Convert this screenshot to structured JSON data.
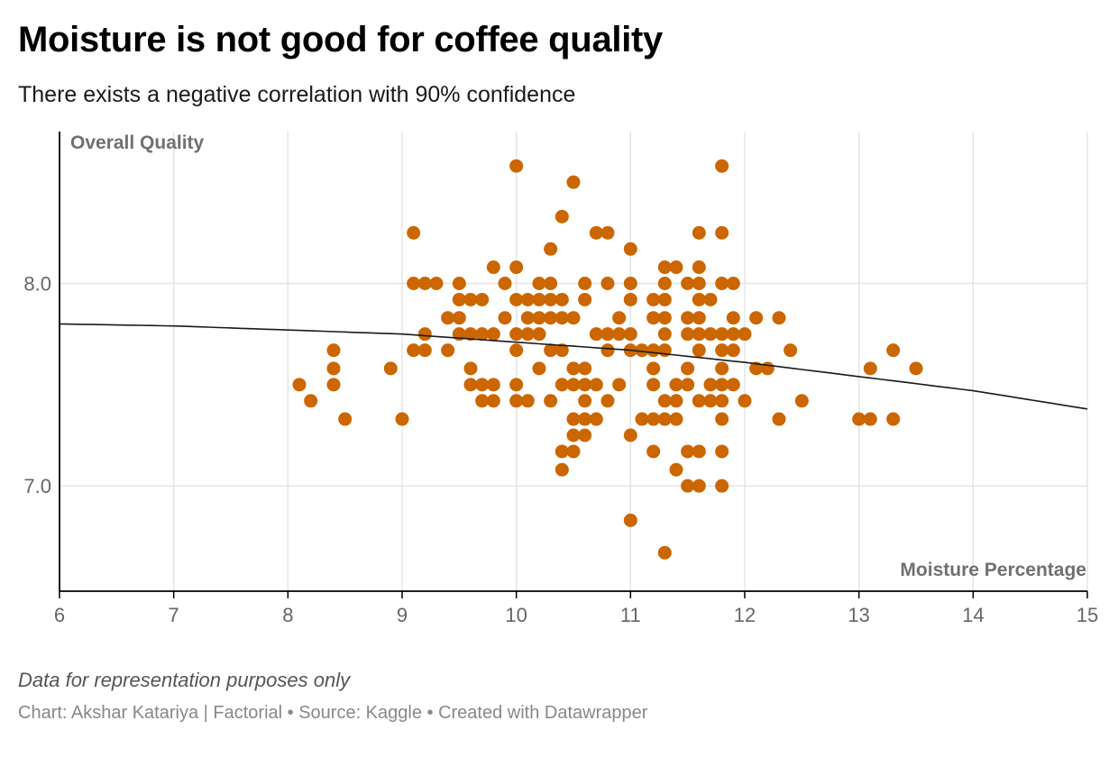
{
  "title": "Moisture is not good for coffee quality",
  "subtitle": "There exists a negative correlation with 90% confidence",
  "footer": {
    "note": "Data for representation purposes only",
    "credit": "Chart: Akshar Katariya | Factorial • Source: Kaggle • Created with Datawrapper"
  },
  "colors": {
    "point": "#cc6600",
    "trendline": "#1a1a1a",
    "grid": "#e3e3e3",
    "axis": "#000000",
    "axis_label": "#707070",
    "tick_label": "#666666"
  },
  "chart_data": {
    "type": "scatter",
    "xlabel": "Moisture Percentage",
    "ylabel": "Overall Quality",
    "xlim": [
      6,
      15
    ],
    "ylim": [
      6.48,
      8.75
    ],
    "x_ticks": [
      "6",
      "7",
      "8",
      "9",
      "10",
      "11",
      "12",
      "13",
      "14",
      "15"
    ],
    "y_ticks": [
      "7.0",
      "8.0"
    ],
    "grid": true,
    "trendline": {
      "x": [
        6,
        7,
        8,
        9,
        10,
        11,
        12,
        13,
        14,
        15
      ],
      "y": [
        7.8,
        7.79,
        7.77,
        7.75,
        7.71,
        7.67,
        7.61,
        7.54,
        7.47,
        7.38
      ]
    },
    "points": [
      [
        8.1,
        7.5
      ],
      [
        8.2,
        7.42
      ],
      [
        8.4,
        7.67
      ],
      [
        8.4,
        7.58
      ],
      [
        8.4,
        7.5
      ],
      [
        8.5,
        7.33
      ],
      [
        8.9,
        7.58
      ],
      [
        9.0,
        7.33
      ],
      [
        9.1,
        8.25
      ],
      [
        9.1,
        8.0
      ],
      [
        9.1,
        7.67
      ],
      [
        9.2,
        8.0
      ],
      [
        9.2,
        7.75
      ],
      [
        9.2,
        7.67
      ],
      [
        9.3,
        8.0
      ],
      [
        9.4,
        7.83
      ],
      [
        9.4,
        7.67
      ],
      [
        9.5,
        8.0
      ],
      [
        9.5,
        7.92
      ],
      [
        9.5,
        7.83
      ],
      [
        9.5,
        7.75
      ],
      [
        9.6,
        7.92
      ],
      [
        9.6,
        7.75
      ],
      [
        9.6,
        7.58
      ],
      [
        9.6,
        7.5
      ],
      [
        9.7,
        7.92
      ],
      [
        9.7,
        7.75
      ],
      [
        9.7,
        7.5
      ],
      [
        9.7,
        7.42
      ],
      [
        9.8,
        8.08
      ],
      [
        9.8,
        7.75
      ],
      [
        9.8,
        7.5
      ],
      [
        9.8,
        7.42
      ],
      [
        9.9,
        7.83
      ],
      [
        9.9,
        8.0
      ],
      [
        10.0,
        8.58
      ],
      [
        10.0,
        8.08
      ],
      [
        10.0,
        7.92
      ],
      [
        10.0,
        7.75
      ],
      [
        10.0,
        7.67
      ],
      [
        10.0,
        7.5
      ],
      [
        10.0,
        7.42
      ],
      [
        10.1,
        7.92
      ],
      [
        10.1,
        7.83
      ],
      [
        10.1,
        7.75
      ],
      [
        10.1,
        7.42
      ],
      [
        10.2,
        8.0
      ],
      [
        10.2,
        7.92
      ],
      [
        10.2,
        7.83
      ],
      [
        10.2,
        7.75
      ],
      [
        10.2,
        7.58
      ],
      [
        10.3,
        8.17
      ],
      [
        10.3,
        8.0
      ],
      [
        10.3,
        7.92
      ],
      [
        10.3,
        7.83
      ],
      [
        10.3,
        7.67
      ],
      [
        10.3,
        7.42
      ],
      [
        10.4,
        8.33
      ],
      [
        10.4,
        7.92
      ],
      [
        10.4,
        7.83
      ],
      [
        10.4,
        7.67
      ],
      [
        10.4,
        7.5
      ],
      [
        10.4,
        7.17
      ],
      [
        10.4,
        7.08
      ],
      [
        10.5,
        8.5
      ],
      [
        10.5,
        7.83
      ],
      [
        10.5,
        7.58
      ],
      [
        10.5,
        7.5
      ],
      [
        10.5,
        7.33
      ],
      [
        10.5,
        7.25
      ],
      [
        10.5,
        7.17
      ],
      [
        10.6,
        8.0
      ],
      [
        10.6,
        7.92
      ],
      [
        10.6,
        7.58
      ],
      [
        10.6,
        7.5
      ],
      [
        10.6,
        7.42
      ],
      [
        10.6,
        7.33
      ],
      [
        10.6,
        7.25
      ],
      [
        10.7,
        8.25
      ],
      [
        10.7,
        7.75
      ],
      [
        10.7,
        7.5
      ],
      [
        10.7,
        7.33
      ],
      [
        10.8,
        8.25
      ],
      [
        10.8,
        8.0
      ],
      [
        10.8,
        7.75
      ],
      [
        10.8,
        7.67
      ],
      [
        10.8,
        7.42
      ],
      [
        10.9,
        7.83
      ],
      [
        10.9,
        7.75
      ],
      [
        10.9,
        7.5
      ],
      [
        11.0,
        8.17
      ],
      [
        11.0,
        8.0
      ],
      [
        11.0,
        7.92
      ],
      [
        11.0,
        7.75
      ],
      [
        11.0,
        7.67
      ],
      [
        11.0,
        7.25
      ],
      [
        11.0,
        6.83
      ],
      [
        11.1,
        7.67
      ],
      [
        11.1,
        7.33
      ],
      [
        11.2,
        7.92
      ],
      [
        11.2,
        7.83
      ],
      [
        11.2,
        7.67
      ],
      [
        11.2,
        7.58
      ],
      [
        11.2,
        7.5
      ],
      [
        11.2,
        7.33
      ],
      [
        11.2,
        7.17
      ],
      [
        11.3,
        8.08
      ],
      [
        11.3,
        8.0
      ],
      [
        11.3,
        7.92
      ],
      [
        11.3,
        7.83
      ],
      [
        11.3,
        7.75
      ],
      [
        11.3,
        7.67
      ],
      [
        11.3,
        7.42
      ],
      [
        11.3,
        7.33
      ],
      [
        11.3,
        6.67
      ],
      [
        11.4,
        8.08
      ],
      [
        11.4,
        7.5
      ],
      [
        11.4,
        7.42
      ],
      [
        11.4,
        7.33
      ],
      [
        11.4,
        7.08
      ],
      [
        11.5,
        8.0
      ],
      [
        11.5,
        7.83
      ],
      [
        11.5,
        7.75
      ],
      [
        11.5,
        7.58
      ],
      [
        11.5,
        7.5
      ],
      [
        11.5,
        7.17
      ],
      [
        11.5,
        7.0
      ],
      [
        11.6,
        8.25
      ],
      [
        11.6,
        8.08
      ],
      [
        11.6,
        8.0
      ],
      [
        11.6,
        7.92
      ],
      [
        11.6,
        7.83
      ],
      [
        11.6,
        7.75
      ],
      [
        11.6,
        7.67
      ],
      [
        11.6,
        7.42
      ],
      [
        11.6,
        7.17
      ],
      [
        11.6,
        7.0
      ],
      [
        11.7,
        7.92
      ],
      [
        11.7,
        7.75
      ],
      [
        11.7,
        7.5
      ],
      [
        11.7,
        7.42
      ],
      [
        11.8,
        8.58
      ],
      [
        11.8,
        8.25
      ],
      [
        11.8,
        8.0
      ],
      [
        11.8,
        7.75
      ],
      [
        11.8,
        7.67
      ],
      [
        11.8,
        7.58
      ],
      [
        11.8,
        7.5
      ],
      [
        11.8,
        7.42
      ],
      [
        11.8,
        7.33
      ],
      [
        11.8,
        7.17
      ],
      [
        11.8,
        7.0
      ],
      [
        11.9,
        8.0
      ],
      [
        11.9,
        7.83
      ],
      [
        11.9,
        7.75
      ],
      [
        11.9,
        7.67
      ],
      [
        11.9,
        7.5
      ],
      [
        12.0,
        7.75
      ],
      [
        12.0,
        7.42
      ],
      [
        12.1,
        7.83
      ],
      [
        12.1,
        7.58
      ],
      [
        12.2,
        7.58
      ],
      [
        12.3,
        7.83
      ],
      [
        12.3,
        7.33
      ],
      [
        12.4,
        7.67
      ],
      [
        12.5,
        7.42
      ],
      [
        13.0,
        7.33
      ],
      [
        13.1,
        7.58
      ],
      [
        13.1,
        7.33
      ],
      [
        13.3,
        7.67
      ],
      [
        13.3,
        7.33
      ],
      [
        13.5,
        7.58
      ]
    ]
  }
}
